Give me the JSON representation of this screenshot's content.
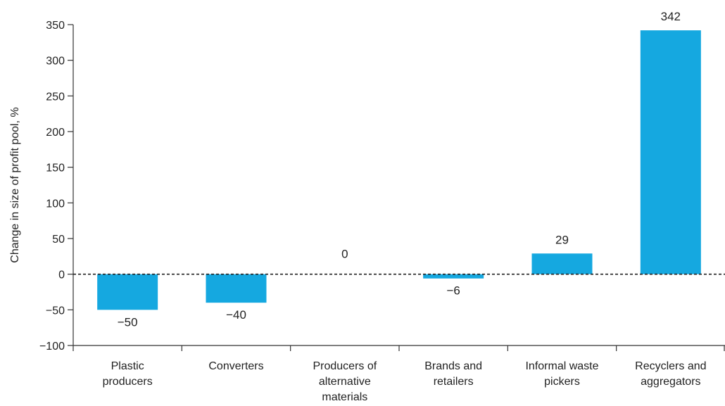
{
  "chart_data": {
    "type": "bar",
    "title": "",
    "xlabel": "",
    "ylabel": "Change in size of profit pool, %",
    "ylim": [
      -100,
      350
    ],
    "yticks": [
      350,
      300,
      250,
      200,
      150,
      100,
      50,
      0,
      -50,
      -100
    ],
    "ytick_labels": [
      "350",
      "300",
      "250",
      "200",
      "150",
      "100",
      "50",
      "0",
      "−50",
      "−100"
    ],
    "categories": [
      [
        "Plastic",
        "producers"
      ],
      [
        "Converters"
      ],
      [
        "Producers of",
        "alternative",
        "materials"
      ],
      [
        "Brands and",
        "retailers"
      ],
      [
        "Informal waste",
        "pickers"
      ],
      [
        "Recyclers and",
        "aggregators"
      ]
    ],
    "values": [
      -50,
      -40,
      0,
      -6,
      29,
      342
    ],
    "value_labels": [
      "−50",
      "−40",
      "0",
      "−6",
      "29",
      "342"
    ],
    "bar_color": "#15a8e0",
    "zero_line": "dashed",
    "grid": false
  }
}
